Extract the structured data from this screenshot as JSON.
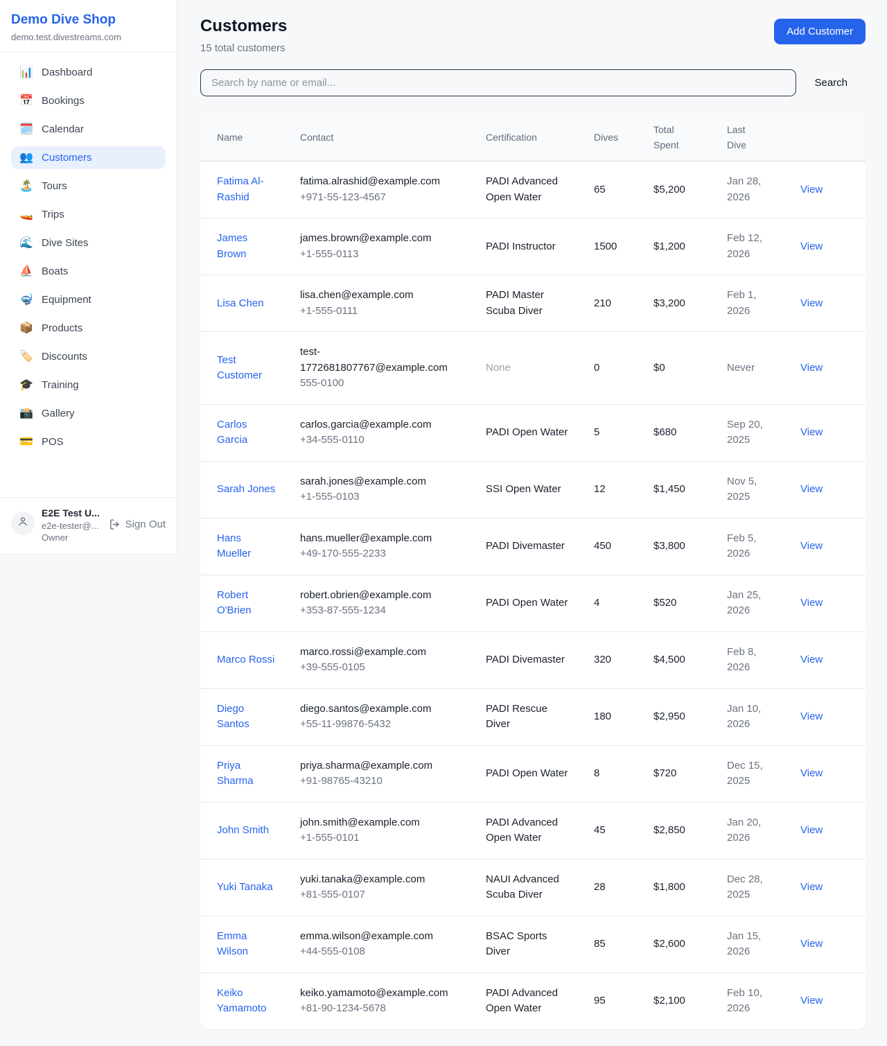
{
  "sidebar": {
    "brand": "Demo Dive Shop",
    "domain": "demo.test.divestreams.com",
    "items": [
      {
        "icon": "📊",
        "label": "Dashboard",
        "active": false
      },
      {
        "icon": "📅",
        "label": "Bookings",
        "active": false
      },
      {
        "icon": "🗓️",
        "label": "Calendar",
        "active": false
      },
      {
        "icon": "👥",
        "label": "Customers",
        "active": true
      },
      {
        "icon": "🏝️",
        "label": "Tours",
        "active": false
      },
      {
        "icon": "🚤",
        "label": "Trips",
        "active": false
      },
      {
        "icon": "🌊",
        "label": "Dive Sites",
        "active": false
      },
      {
        "icon": "⛵",
        "label": "Boats",
        "active": false
      },
      {
        "icon": "🤿",
        "label": "Equipment",
        "active": false
      },
      {
        "icon": "📦",
        "label": "Products",
        "active": false
      },
      {
        "icon": "🏷️",
        "label": "Discounts",
        "active": false
      },
      {
        "icon": "🎓",
        "label": "Training",
        "active": false
      },
      {
        "icon": "📸",
        "label": "Gallery",
        "active": false
      },
      {
        "icon": "💳",
        "label": "POS",
        "active": false
      }
    ],
    "user": {
      "name": "E2E Test U...",
      "email": "e2e-tester@...",
      "role": "Owner",
      "sign_out_label": "Sign Out"
    }
  },
  "header": {
    "title": "Customers",
    "subtitle": "15 total customers",
    "add_button_label": "Add Customer"
  },
  "search": {
    "placeholder": "Search by name or email...",
    "button_label": "Search"
  },
  "table": {
    "columns": [
      "Name",
      "Contact",
      "Certification",
      "Dives",
      "Total Spent",
      "Last Dive",
      ""
    ],
    "rows": [
      {
        "name": "Fatima Al-Rashid",
        "email": "fatima.alrashid@example.com",
        "phone": "+971-55-123-4567",
        "certification": "PADI Advanced Open Water",
        "dives": "65",
        "total_spent": "$5,200",
        "last_dive": "Jan 28, 2026",
        "action": "View"
      },
      {
        "name": "James Brown",
        "email": "james.brown@example.com",
        "phone": "+1-555-0113",
        "certification": "PADI Instructor",
        "dives": "1500",
        "total_spent": "$1,200",
        "last_dive": "Feb 12, 2026",
        "action": "View"
      },
      {
        "name": "Lisa Chen",
        "email": "lisa.chen@example.com",
        "phone": "+1-555-0111",
        "certification": "PADI Master Scuba Diver",
        "dives": "210",
        "total_spent": "$3,200",
        "last_dive": "Feb 1, 2026",
        "action": "View"
      },
      {
        "name": "Test Customer",
        "email": "test-1772681807767@example.com",
        "phone": "555-0100",
        "certification": "None",
        "dives": "0",
        "total_spent": "$0",
        "last_dive": "Never",
        "action": "View"
      },
      {
        "name": "Carlos Garcia",
        "email": "carlos.garcia@example.com",
        "phone": "+34-555-0110",
        "certification": "PADI Open Water",
        "dives": "5",
        "total_spent": "$680",
        "last_dive": "Sep 20, 2025",
        "action": "View"
      },
      {
        "name": "Sarah Jones",
        "email": "sarah.jones@example.com",
        "phone": "+1-555-0103",
        "certification": "SSI Open Water",
        "dives": "12",
        "total_spent": "$1,450",
        "last_dive": "Nov 5, 2025",
        "action": "View"
      },
      {
        "name": "Hans Mueller",
        "email": "hans.mueller@example.com",
        "phone": "+49-170-555-2233",
        "certification": "PADI Divemaster",
        "dives": "450",
        "total_spent": "$3,800",
        "last_dive": "Feb 5, 2026",
        "action": "View"
      },
      {
        "name": "Robert O'Brien",
        "email": "robert.obrien@example.com",
        "phone": "+353-87-555-1234",
        "certification": "PADI Open Water",
        "dives": "4",
        "total_spent": "$520",
        "last_dive": "Jan 25, 2026",
        "action": "View"
      },
      {
        "name": "Marco Rossi",
        "email": "marco.rossi@example.com",
        "phone": "+39-555-0105",
        "certification": "PADI Divemaster",
        "dives": "320",
        "total_spent": "$4,500",
        "last_dive": "Feb 8, 2026",
        "action": "View"
      },
      {
        "name": "Diego Santos",
        "email": "diego.santos@example.com",
        "phone": "+55-11-99876-5432",
        "certification": "PADI Rescue Diver",
        "dives": "180",
        "total_spent": "$2,950",
        "last_dive": "Jan 10, 2026",
        "action": "View"
      },
      {
        "name": "Priya Sharma",
        "email": "priya.sharma@example.com",
        "phone": "+91-98765-43210",
        "certification": "PADI Open Water",
        "dives": "8",
        "total_spent": "$720",
        "last_dive": "Dec 15, 2025",
        "action": "View"
      },
      {
        "name": "John Smith",
        "email": "john.smith@example.com",
        "phone": "+1-555-0101",
        "certification": "PADI Advanced Open Water",
        "dives": "45",
        "total_spent": "$2,850",
        "last_dive": "Jan 20, 2026",
        "action": "View"
      },
      {
        "name": "Yuki Tanaka",
        "email": "yuki.tanaka@example.com",
        "phone": "+81-555-0107",
        "certification": "NAUI Advanced Scuba Diver",
        "dives": "28",
        "total_spent": "$1,800",
        "last_dive": "Dec 28, 2025",
        "action": "View"
      },
      {
        "name": "Emma Wilson",
        "email": "emma.wilson@example.com",
        "phone": "+44-555-0108",
        "certification": "BSAC Sports Diver",
        "dives": "85",
        "total_spent": "$2,600",
        "last_dive": "Jan 15, 2026",
        "action": "View"
      },
      {
        "name": "Keiko Yamamoto",
        "email": "keiko.yamamoto@example.com",
        "phone": "+81-90-1234-5678",
        "certification": "PADI Advanced Open Water",
        "dives": "95",
        "total_spent": "$2,100",
        "last_dive": "Feb 10, 2026",
        "action": "View"
      }
    ]
  },
  "colors": {
    "accent": "#2563eb",
    "active_item_bg": "#e9f0fd",
    "page_bg": "#f7f8fa",
    "table_header_bg": "#f8fafc",
    "muted_text": "#6b7280"
  }
}
